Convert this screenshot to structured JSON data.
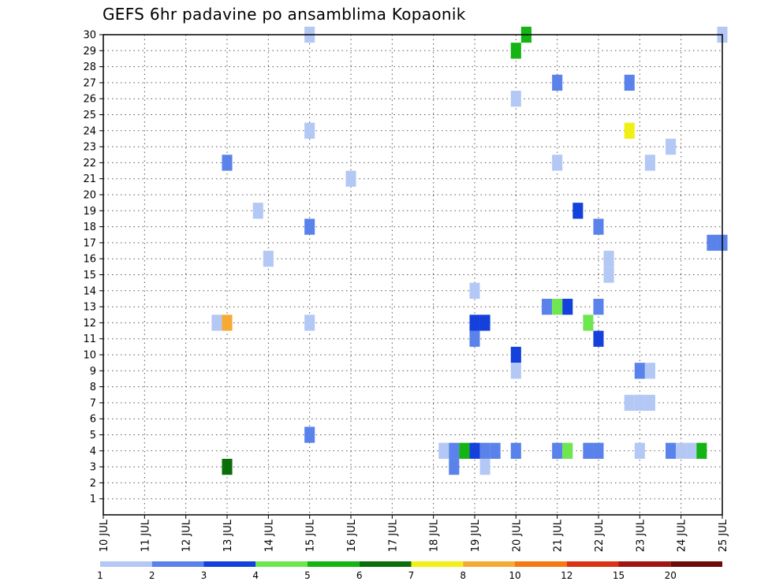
{
  "chart_data": {
    "type": "heatmap",
    "title": "GEFS 6hr padavine po ansamblima Kopaonik",
    "x_ticks": [
      "10 JUL",
      "11 JUL",
      "12 JUL",
      "13 JUL",
      "14 JUL",
      "15 JUL",
      "16 JUL",
      "17 JUL",
      "18 JUL",
      "19 JUL",
      "20 JUL",
      "21 JUL",
      "22 JUL",
      "23 JUL",
      "24 JUL",
      "25 JUL"
    ],
    "y_ticks": [
      "1",
      "2",
      "3",
      "4",
      "5",
      "6",
      "7",
      "8",
      "9",
      "10",
      "11",
      "12",
      "13",
      "14",
      "15",
      "16",
      "17",
      "18",
      "19",
      "20",
      "21",
      "22",
      "23",
      "24",
      "25",
      "26",
      "27",
      "28",
      "29",
      "30"
    ],
    "x_range": [
      0,
      15
    ],
    "y_range": [
      0,
      30
    ],
    "grid": true,
    "legend": {
      "placement": "bottom",
      "colors": [
        "#b4c8f5",
        "#5a82eb",
        "#1440dc",
        "#6ee650",
        "#14b414",
        "#0a6e0a",
        "#f0f014",
        "#f5aa32",
        "#f57814",
        "#dc3214",
        "#a01414",
        "#6e0a0a"
      ],
      "labels": [
        "1",
        "2",
        "3",
        "4",
        "5",
        "6",
        "7",
        "8",
        "10",
        "12",
        "15",
        "20"
      ]
    },
    "cells": [
      {
        "x": 5.0,
        "y": 30,
        "c": 1
      },
      {
        "x": 10.25,
        "y": 30,
        "c": 5
      },
      {
        "x": 15.0,
        "y": 30,
        "c": 1
      },
      {
        "x": 10.0,
        "y": 29,
        "c": 5
      },
      {
        "x": 11.0,
        "y": 27,
        "c": 2
      },
      {
        "x": 12.75,
        "y": 27,
        "c": 2
      },
      {
        "x": 10.0,
        "y": 26,
        "c": 1
      },
      {
        "x": 5.0,
        "y": 24,
        "c": 1
      },
      {
        "x": 12.75,
        "y": 24,
        "c": 7
      },
      {
        "x": 13.75,
        "y": 23,
        "c": 1
      },
      {
        "x": 3.0,
        "y": 22,
        "c": 2
      },
      {
        "x": 11.0,
        "y": 22,
        "c": 1
      },
      {
        "x": 13.25,
        "y": 22,
        "c": 1
      },
      {
        "x": 6.0,
        "y": 21,
        "c": 1
      },
      {
        "x": 3.75,
        "y": 19,
        "c": 1
      },
      {
        "x": 11.5,
        "y": 19,
        "c": 3
      },
      {
        "x": 5.0,
        "y": 18,
        "c": 2
      },
      {
        "x": 12.0,
        "y": 18,
        "c": 2
      },
      {
        "x": 14.75,
        "y": 17,
        "c": 2
      },
      {
        "x": 15.0,
        "y": 17,
        "c": 2
      },
      {
        "x": 4.0,
        "y": 16,
        "c": 1
      },
      {
        "x": 12.25,
        "y": 16,
        "c": 1
      },
      {
        "x": 12.25,
        "y": 15,
        "c": 1
      },
      {
        "x": 9.0,
        "y": 14,
        "c": 1
      },
      {
        "x": 10.75,
        "y": 13,
        "c": 2
      },
      {
        "x": 11.0,
        "y": 13,
        "c": 4
      },
      {
        "x": 11.25,
        "y": 13,
        "c": 3
      },
      {
        "x": 12.0,
        "y": 13,
        "c": 2
      },
      {
        "x": 2.75,
        "y": 12,
        "c": 1
      },
      {
        "x": 3.0,
        "y": 12,
        "c": 8
      },
      {
        "x": 5.0,
        "y": 12,
        "c": 1
      },
      {
        "x": 9.0,
        "y": 12,
        "c": 3
      },
      {
        "x": 9.25,
        "y": 12,
        "c": 3
      },
      {
        "x": 11.75,
        "y": 12,
        "c": 4
      },
      {
        "x": 9.0,
        "y": 11,
        "c": 2
      },
      {
        "x": 12.0,
        "y": 11,
        "c": 3
      },
      {
        "x": 10.0,
        "y": 10,
        "c": 3
      },
      {
        "x": 10.0,
        "y": 9,
        "c": 1
      },
      {
        "x": 13.0,
        "y": 9,
        "c": 2
      },
      {
        "x": 13.25,
        "y": 9,
        "c": 1
      },
      {
        "x": 12.75,
        "y": 7,
        "c": 1
      },
      {
        "x": 13.0,
        "y": 7,
        "c": 1
      },
      {
        "x": 13.25,
        "y": 7,
        "c": 1
      },
      {
        "x": 5.0,
        "y": 5,
        "c": 2
      },
      {
        "x": 8.25,
        "y": 4,
        "c": 1
      },
      {
        "x": 8.5,
        "y": 4,
        "c": 2
      },
      {
        "x": 8.75,
        "y": 4,
        "c": 5
      },
      {
        "x": 9.0,
        "y": 4,
        "c": 3
      },
      {
        "x": 9.25,
        "y": 4,
        "c": 2
      },
      {
        "x": 9.5,
        "y": 4,
        "c": 2
      },
      {
        "x": 10.0,
        "y": 4,
        "c": 2
      },
      {
        "x": 11.0,
        "y": 4,
        "c": 2
      },
      {
        "x": 11.25,
        "y": 4,
        "c": 4
      },
      {
        "x": 11.75,
        "y": 4,
        "c": 2
      },
      {
        "x": 12.0,
        "y": 4,
        "c": 2
      },
      {
        "x": 13.0,
        "y": 4,
        "c": 1
      },
      {
        "x": 13.75,
        "y": 4,
        "c": 2
      },
      {
        "x": 14.0,
        "y": 4,
        "c": 1
      },
      {
        "x": 14.25,
        "y": 4,
        "c": 1
      },
      {
        "x": 14.5,
        "y": 4,
        "c": 5
      },
      {
        "x": 3.0,
        "y": 3,
        "c": 6
      },
      {
        "x": 8.5,
        "y": 3,
        "c": 2
      },
      {
        "x": 9.25,
        "y": 3,
        "c": 1
      }
    ]
  }
}
